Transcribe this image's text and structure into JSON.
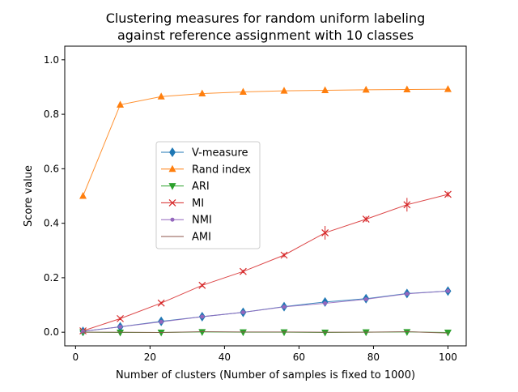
{
  "chart_data": {
    "type": "line",
    "title": "Clustering measures for random uniform labeling\nagainst reference assignment with 10 classes",
    "title_lines": [
      "Clustering measures for random uniform labeling",
      "against reference assignment with 10 classes"
    ],
    "xlabel": "Number of clusters (Number of samples is fixed to 1000)",
    "ylabel": "Score value",
    "xlim": [
      -2.9,
      104.9
    ],
    "ylim": [
      -0.05,
      1.05
    ],
    "xticks": [
      0,
      20,
      40,
      60,
      80,
      100
    ],
    "xtick_labels": [
      "0",
      "20",
      "40",
      "60",
      "80",
      "100"
    ],
    "yticks": [
      0.0,
      0.2,
      0.4,
      0.6,
      0.8,
      1.0
    ],
    "ytick_labels": [
      "0.0",
      "0.2",
      "0.4",
      "0.6",
      "0.8",
      "1.0"
    ],
    "grid": false,
    "legend_placement": "center-left",
    "x": [
      2,
      12,
      23,
      34,
      45,
      56,
      67,
      78,
      89,
      100
    ],
    "series": [
      {
        "name": "V-measure",
        "color": "#1f77b4",
        "marker": "diamond",
        "values": [
          0.003,
          0.02,
          0.04,
          0.057,
          0.073,
          0.094,
          0.111,
          0.123,
          0.142,
          0.151
        ]
      },
      {
        "name": "Rand index",
        "color": "#ff7f0e",
        "marker": "triangle-up",
        "values": [
          0.5,
          0.835,
          0.865,
          0.876,
          0.882,
          0.886,
          0.888,
          0.89,
          0.891,
          0.892
        ]
      },
      {
        "name": "ARI",
        "color": "#2ca02c",
        "marker": "triangle-down",
        "values": [
          0.0,
          -0.001,
          -0.001,
          0.001,
          0.0,
          0.0,
          -0.001,
          0.0,
          0.001,
          -0.001
        ]
      },
      {
        "name": "MI",
        "color": "#d62728",
        "marker": "x",
        "values": [
          0.005,
          0.05,
          0.107,
          0.172,
          0.223,
          0.283,
          0.365,
          0.415,
          0.468,
          0.506
        ],
        "errors": [
          0.003,
          0.005,
          0.005,
          0.006,
          0.006,
          0.008,
          0.025,
          0.01,
          0.025,
          0.01
        ]
      },
      {
        "name": "NMI",
        "color": "#9467bd",
        "marker": "dot",
        "values": [
          0.003,
          0.02,
          0.038,
          0.057,
          0.073,
          0.093,
          0.106,
          0.121,
          0.141,
          0.151
        ]
      },
      {
        "name": "AMI",
        "color": "#8c564b",
        "marker": "pixel",
        "values": [
          0.0,
          0.0,
          -0.001,
          0.002,
          0.001,
          0.001,
          0.0,
          0.0,
          0.002,
          -0.003
        ]
      }
    ]
  }
}
